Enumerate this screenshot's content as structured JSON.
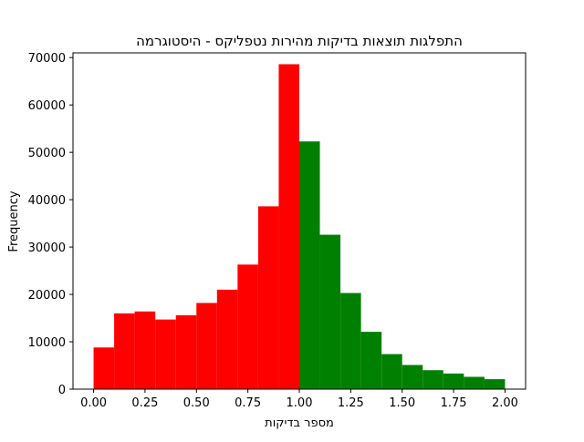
{
  "chart_data": {
    "type": "bar",
    "title": "התפלגות תוצאות בדיקות מהירות נטפליקס - היסטוגרמה",
    "xlabel": "מספר בדיקות",
    "ylabel": "Frequency",
    "xlim": [
      -0.1,
      2.1
    ],
    "ylim": [
      0,
      71000
    ],
    "xticks": [
      0.0,
      0.25,
      0.5,
      0.75,
      1.0,
      1.25,
      1.5,
      1.75,
      2.0
    ],
    "xtick_labels": [
      "0.00",
      "0.25",
      "0.50",
      "0.75",
      "1.00",
      "1.25",
      "1.50",
      "1.75",
      "2.00"
    ],
    "yticks": [
      0,
      10000,
      20000,
      30000,
      40000,
      50000,
      60000,
      70000
    ],
    "ytick_labels": [
      "0",
      "10000",
      "20000",
      "30000",
      "40000",
      "50000",
      "60000",
      "70000"
    ],
    "grid": false,
    "bins": [
      {
        "x0": 0.0,
        "x1": 0.1,
        "value": 8800,
        "color": "#ff0000"
      },
      {
        "x0": 0.1,
        "x1": 0.2,
        "value": 16000,
        "color": "#ff0000"
      },
      {
        "x0": 0.2,
        "x1": 0.3,
        "value": 16400,
        "color": "#ff0000"
      },
      {
        "x0": 0.3,
        "x1": 0.4,
        "value": 14700,
        "color": "#ff0000"
      },
      {
        "x0": 0.4,
        "x1": 0.5,
        "value": 15600,
        "color": "#ff0000"
      },
      {
        "x0": 0.5,
        "x1": 0.6,
        "value": 18200,
        "color": "#ff0000"
      },
      {
        "x0": 0.6,
        "x1": 0.7,
        "value": 21000,
        "color": "#ff0000"
      },
      {
        "x0": 0.7,
        "x1": 0.8,
        "value": 26300,
        "color": "#ff0000"
      },
      {
        "x0": 0.8,
        "x1": 0.9,
        "value": 38600,
        "color": "#ff0000"
      },
      {
        "x0": 0.9,
        "x1": 1.0,
        "value": 68600,
        "color": "#ff0000"
      },
      {
        "x0": 1.0,
        "x1": 1.1,
        "value": 52300,
        "color": "#008000"
      },
      {
        "x0": 1.1,
        "x1": 1.2,
        "value": 32600,
        "color": "#008000"
      },
      {
        "x0": 1.2,
        "x1": 1.3,
        "value": 20300,
        "color": "#008000"
      },
      {
        "x0": 1.3,
        "x1": 1.4,
        "value": 12100,
        "color": "#008000"
      },
      {
        "x0": 1.4,
        "x1": 1.5,
        "value": 7400,
        "color": "#008000"
      },
      {
        "x0": 1.5,
        "x1": 1.6,
        "value": 5100,
        "color": "#008000"
      },
      {
        "x0": 1.6,
        "x1": 1.7,
        "value": 4000,
        "color": "#008000"
      },
      {
        "x0": 1.7,
        "x1": 1.8,
        "value": 3300,
        "color": "#008000"
      },
      {
        "x0": 1.8,
        "x1": 1.9,
        "value": 2600,
        "color": "#008000"
      },
      {
        "x0": 1.9,
        "x1": 2.0,
        "value": 2100,
        "color": "#008000"
      }
    ]
  }
}
